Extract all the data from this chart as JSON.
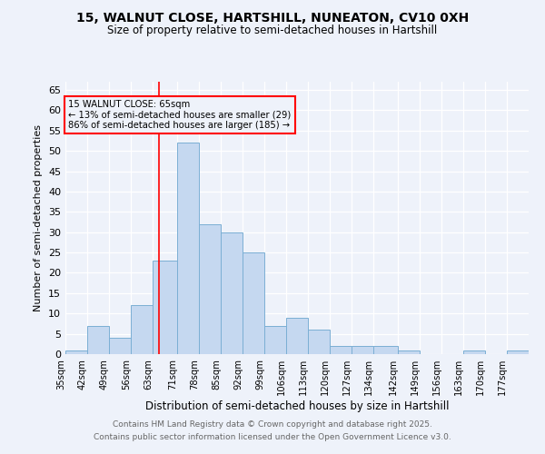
{
  "title1": "15, WALNUT CLOSE, HARTSHILL, NUNEATON, CV10 0XH",
  "title2": "Size of property relative to semi-detached houses in Hartshill",
  "xlabel": "Distribution of semi-detached houses by size in Hartshill",
  "ylabel": "Number of semi-detached properties",
  "bin_labels": [
    "35sqm",
    "42sqm",
    "49sqm",
    "56sqm",
    "63sqm",
    "71sqm",
    "78sqm",
    "85sqm",
    "92sqm",
    "99sqm",
    "106sqm",
    "113sqm",
    "120sqm",
    "127sqm",
    "134sqm",
    "142sqm",
    "149sqm",
    "156sqm",
    "163sqm",
    "170sqm",
    "177sqm"
  ],
  "bin_edges": [
    35,
    42,
    49,
    56,
    63,
    71,
    78,
    85,
    92,
    99,
    106,
    113,
    120,
    127,
    134,
    142,
    149,
    156,
    163,
    170,
    177,
    184
  ],
  "values": [
    1,
    7,
    4,
    12,
    23,
    52,
    32,
    30,
    25,
    7,
    9,
    6,
    2,
    2,
    2,
    1,
    0,
    0,
    1,
    0,
    1
  ],
  "bar_color": "#c5d8f0",
  "bar_edge_color": "#7bafd4",
  "property_line_x": 65,
  "property_line_color": "red",
  "annotation_title": "15 WALNUT CLOSE: 65sqm",
  "annotation_line1": "← 13% of semi-detached houses are smaller (29)",
  "annotation_line2": "86% of semi-detached houses are larger (185) →",
  "annotation_box_color": "red",
  "ylim_max": 67,
  "yticks": [
    0,
    5,
    10,
    15,
    20,
    25,
    30,
    35,
    40,
    45,
    50,
    55,
    60,
    65
  ],
  "footer1": "Contains HM Land Registry data © Crown copyright and database right 2025.",
  "footer2": "Contains public sector information licensed under the Open Government Licence v3.0.",
  "bg_color": "#eef2fa"
}
